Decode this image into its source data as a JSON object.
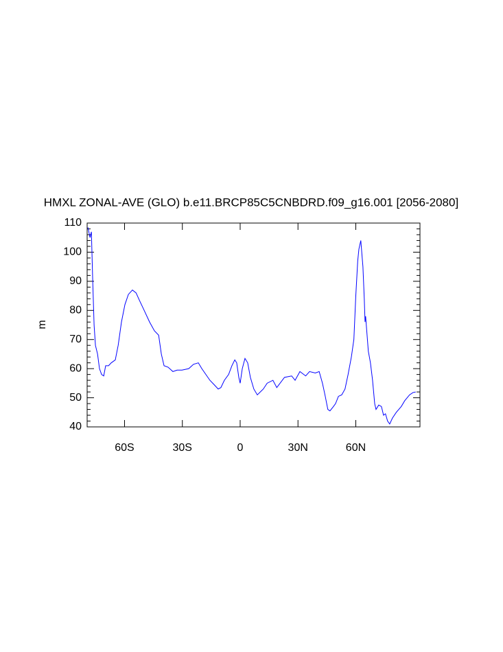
{
  "chart_data": {
    "type": "line",
    "title": "HMXL ZONAL-AVE (GLO) b.e11.BRCP85C5CNBDRD.f09_g16.001 [2056-2080]",
    "ylabel": "m",
    "color": "#0000ff",
    "xlim": [
      -79.4,
      93.3
    ],
    "ylim": [
      40,
      110
    ],
    "xticks": [
      {
        "value": -60,
        "label": "60S"
      },
      {
        "value": -30,
        "label": "30S"
      },
      0,
      {
        "value": 30,
        "label": "30N"
      },
      {
        "value": 60,
        "label": "60N"
      }
    ],
    "yticks": [
      40,
      50,
      60,
      70,
      80,
      90,
      100,
      110
    ],
    "yminorticks": [
      42,
      44,
      46,
      48,
      52,
      54,
      56,
      58,
      62,
      64,
      66,
      68,
      72,
      74,
      76,
      78,
      82,
      84,
      86,
      88,
      92,
      94,
      96,
      98,
      102,
      104,
      106,
      108
    ],
    "x": [
      -79,
      -77.9,
      -77.2,
      -76.5,
      -75.8,
      -75.1,
      -74,
      -73,
      -71.9,
      -70.8,
      -69.8,
      -68.3,
      -66.9,
      -64.8,
      -63.3,
      -61.6,
      -59.8,
      -58,
      -55.9,
      -54,
      -52.3,
      -49.8,
      -47,
      -44.5,
      -42.3,
      -40.9,
      -39.5,
      -37.4,
      -34.9,
      -32.7,
      -30.2,
      -26.7,
      -24.2,
      -21.7,
      -19.9,
      -17.8,
      -15.7,
      -13.5,
      -11.4,
      -10,
      -8.2,
      -6,
      -4.3,
      -2.8,
      -1.8,
      -0.7,
      0,
      1.1,
      2.5,
      3.9,
      5.3,
      7.1,
      8.9,
      12,
      14,
      17,
      19,
      23,
      26.7,
      28.5,
      31,
      34,
      36,
      39,
      41,
      42.7,
      44,
      45.5,
      46.6,
      48.4,
      49.5,
      51,
      52.7,
      54.4,
      56,
      57.7,
      59,
      60,
      61,
      61.6,
      62.6,
      63.7,
      64.4,
      64.8,
      65.1,
      65.8,
      66.5,
      67.6,
      68.7,
      69.8,
      70.5,
      71.9,
      73.3,
      74.4,
      75.4,
      76.5,
      77.6,
      79,
      81,
      83.6,
      85.4,
      87.9,
      89.7,
      91.1
    ],
    "values": [
      108.5,
      105,
      107,
      90,
      75,
      68,
      65,
      60,
      58,
      57.5,
      61,
      61,
      62,
      63,
      68,
      76,
      82,
      85.5,
      87,
      86,
      83.5,
      80,
      76,
      73,
      71.5,
      65,
      61,
      60.5,
      59,
      59.5,
      59.5,
      60,
      61.5,
      62,
      60,
      58,
      56,
      54.5,
      53,
      53.5,
      56,
      58,
      61,
      63,
      62,
      57,
      55,
      60,
      63.5,
      62,
      57,
      53,
      51,
      53,
      55,
      56,
      53.5,
      57,
      57.5,
      56,
      59,
      57.5,
      59,
      58.5,
      59,
      55,
      51,
      46,
      45.5,
      47,
      48,
      50.5,
      51,
      53,
      58,
      64,
      70,
      85,
      97,
      101,
      104,
      95,
      84,
      76,
      78,
      72,
      66,
      62,
      56,
      48,
      46,
      47.5,
      47,
      44,
      44.5,
      42,
      41,
      43,
      45,
      47,
      49,
      51,
      51.8,
      52
    ]
  }
}
